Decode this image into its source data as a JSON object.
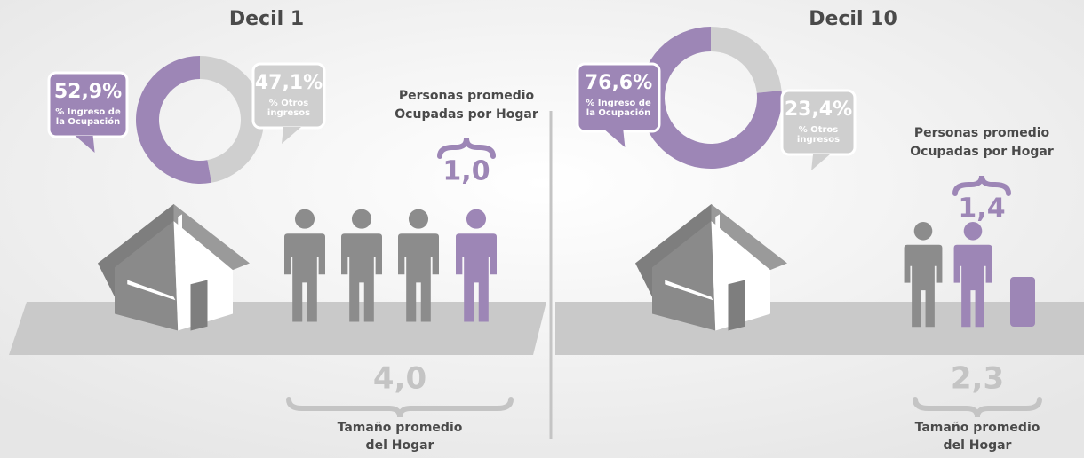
{
  "panels": [
    {
      "title": "Decil 1",
      "donut": {
        "values": [
          52.9,
          47.1
        ],
        "value_labels": [
          "52,9%",
          "47,1%"
        ],
        "labels": [
          [
            "% Ingreso de",
            "la Ocupación"
          ],
          [
            "% Otros",
            "ingresos"
          ]
        ],
        "colors": [
          "#9d86b6",
          "#cfcfcf"
        ]
      },
      "occupied": {
        "label": [
          "Personas promedio",
          "Ocupadas por Hogar"
        ],
        "value": 1.0,
        "value_label": "1,0"
      },
      "household": {
        "label": [
          "Tamaño promedio",
          "del Hogar"
        ],
        "value": 4.0,
        "value_label": "4,0"
      }
    },
    {
      "title": "Decil 10",
      "donut": {
        "values": [
          76.6,
          23.4
        ],
        "value_labels": [
          "76,6%",
          "23,4%"
        ],
        "labels": [
          [
            "% Ingreso de",
            "la Ocupación"
          ],
          [
            "% Otros",
            "ingresos"
          ]
        ],
        "colors": [
          "#9d86b6",
          "#cfcfcf"
        ]
      },
      "occupied": {
        "label": [
          "Personas promedio",
          "Ocupadas por Hogar"
        ],
        "value": 1.4,
        "value_label": "1,4"
      },
      "household": {
        "label": [
          "Tamaño promedio",
          "del Hogar"
        ],
        "value": 2.3,
        "value_label": "2,3"
      }
    }
  ]
}
